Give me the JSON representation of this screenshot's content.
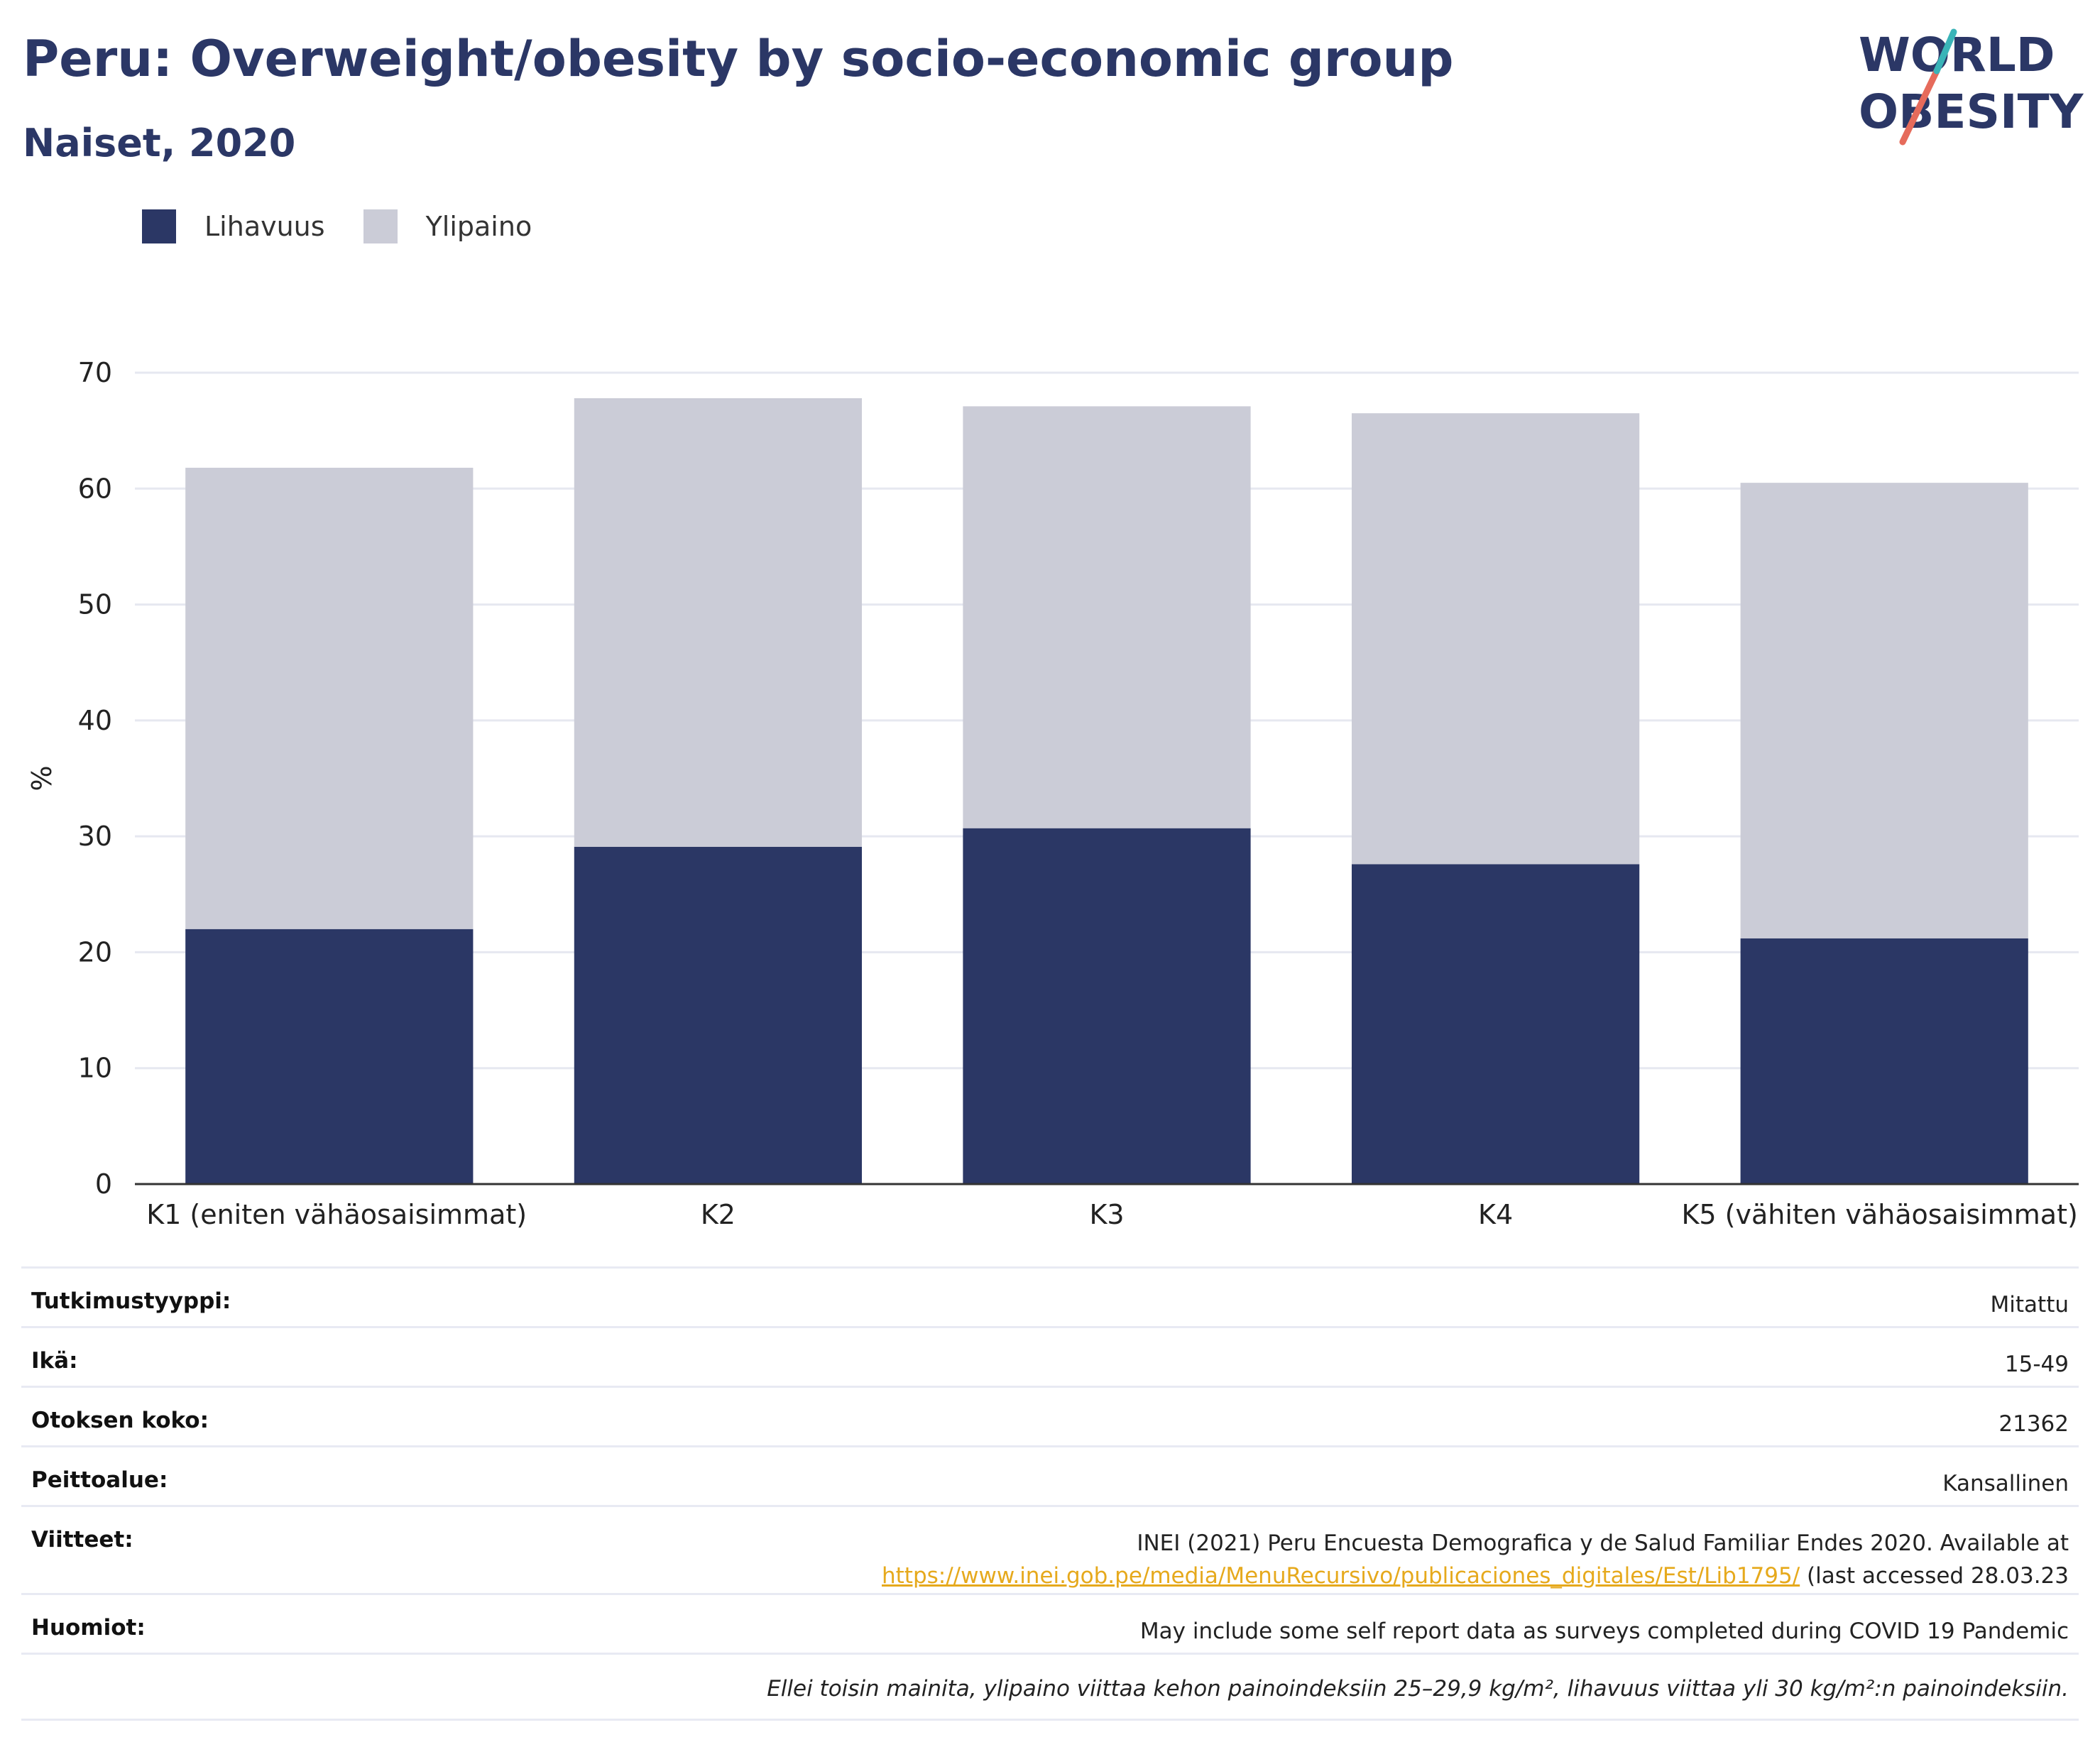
{
  "header": {
    "title": "Peru: Overweight/obesity by socio-economic group",
    "subtitle": "Naiset, 2020"
  },
  "logo": {
    "line1": "WORLD",
    "line2": "OBESITY",
    "accent_teal": "#3ab4b8",
    "accent_coral": "#e66b5b"
  },
  "colors": {
    "obesity": "#2b3765",
    "overweight": "#cbccd7",
    "grid": "#e6e8f0",
    "axis": "#333333"
  },
  "chart_data": {
    "type": "bar",
    "stacked": true,
    "categories": [
      "K1 (eniten vähäosaisimmat)",
      "K2",
      "K3",
      "K4",
      "K5 (vähiten vähäosaisimmat)"
    ],
    "series": [
      {
        "name": "Lihavuus",
        "values": [
          22.0,
          29.1,
          30.7,
          27.6,
          21.2
        ]
      },
      {
        "name": "Ylipaino",
        "values": [
          39.8,
          38.7,
          36.4,
          38.9,
          39.3
        ]
      }
    ],
    "ylabel": "%",
    "ylim": [
      0,
      70
    ],
    "yticks": [
      0,
      10,
      20,
      30,
      40,
      50,
      60,
      70
    ],
    "grid": true,
    "legend": "top-left"
  },
  "meta": {
    "study_type": {
      "label": "Tutkimustyyppi:",
      "value": "Mitattu"
    },
    "age": {
      "label": "Ikä:",
      "value": "15-49"
    },
    "sample_size": {
      "label": "Otoksen koko:",
      "value": "21362"
    },
    "coverage": {
      "label": "Peittoalue:",
      "value": "Kansallinen"
    },
    "references": {
      "label": "Viitteet:",
      "text1": "INEI (2021) Peru Encuesta Demografica y de Salud Familiar Endes 2020. Available at",
      "link": "https://www.inei.gob.pe/media/MenuRecursivo/publicaciones_digitales/Est/Lib1795/",
      "text2": " (last accessed 28.03.23"
    },
    "notes": {
      "label": "Huomiot:",
      "value": "May include some self report data as surveys completed during COVID 19 Pandemic"
    },
    "footnote": "Ellei toisin mainita, ylipaino viittaa kehon painoindeksiin 25–29,9 kg/m², lihavuus viittaa yli 30 kg/m²:n painoindeksiin."
  }
}
